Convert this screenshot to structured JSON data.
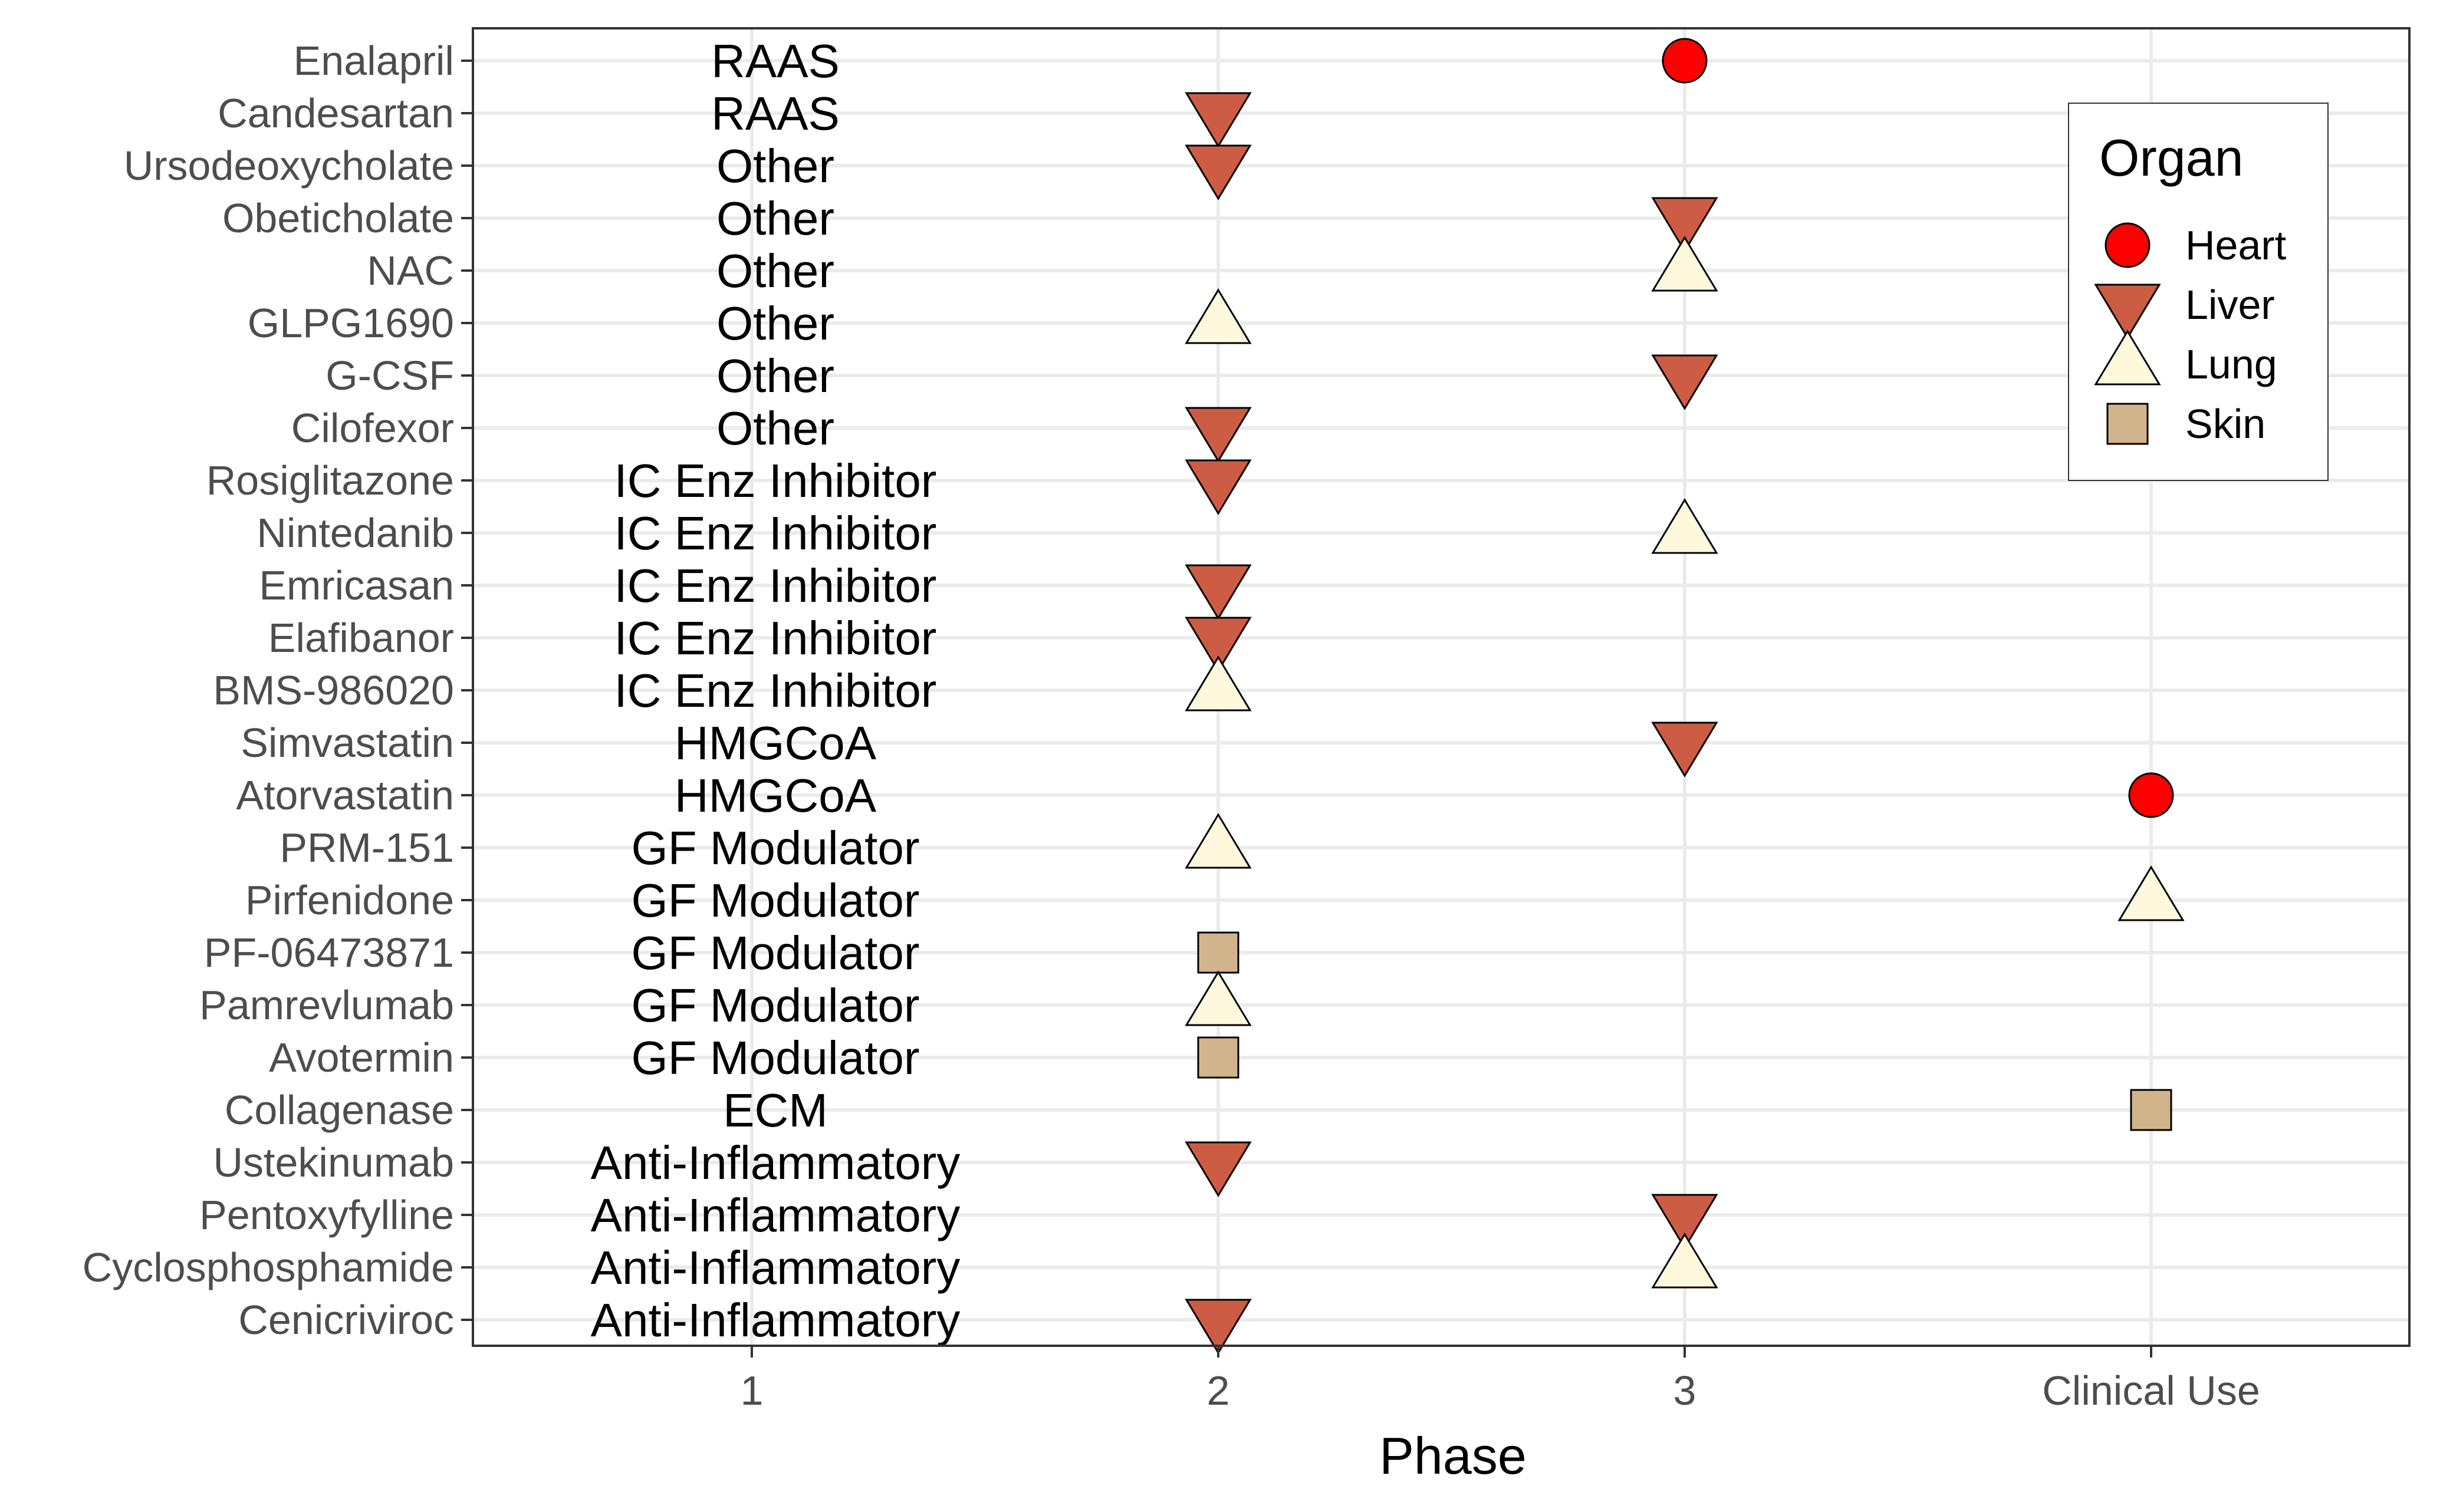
{
  "chart_data": {
    "type": "scatter",
    "title": "",
    "xlabel": "Phase",
    "ylabel": "",
    "x_categories": [
      "1",
      "2",
      "3",
      "Clinical Use"
    ],
    "y_categories": [
      "Enalapril",
      "Candesartan",
      "Ursodeoxycholate",
      "Obeticholate",
      "NAC",
      "GLPG1690",
      "G-CSF",
      "Cilofexor",
      "Rosiglitazone",
      "Nintedanib",
      "Emricasan",
      "Elafibanor",
      "BMS-986020",
      "Simvastatin",
      "Atorvastatin",
      "PRM-151",
      "Pirfenidone",
      "PF-06473871",
      "Pamrevlumab",
      "Avotermin",
      "Collagenase",
      "Ustekinumab",
      "Pentoxyfylline",
      "Cyclosphosphamide",
      "Cenicriviroc"
    ],
    "class_labels": [
      "RAAS",
      "RAAS",
      "Other",
      "Other",
      "Other",
      "Other",
      "Other",
      "Other",
      "IC Enz Inhibitor",
      "IC Enz Inhibitor",
      "IC Enz Inhibitor",
      "IC Enz Inhibitor",
      "IC Enz Inhibitor",
      "HMGCoA",
      "HMGCoA",
      "GF Modulator",
      "GF Modulator",
      "GF Modulator",
      "GF Modulator",
      "GF Modulator",
      "ECM",
      "Anti-Inflammatory",
      "Anti-Inflammatory",
      "Anti-Inflammatory",
      "Anti-Inflammatory"
    ],
    "legend": {
      "title": "Organ",
      "position": "top-right",
      "items": [
        {
          "name": "Heart",
          "shape": "circle",
          "color": "#ff0000"
        },
        {
          "name": "Liver",
          "shape": "triangle-down",
          "color": "#cd5c45"
        },
        {
          "name": "Lung",
          "shape": "triangle-up",
          "color": "#fff8dc"
        },
        {
          "name": "Skin",
          "shape": "square",
          "color": "#d2b48c"
        }
      ]
    },
    "points": [
      {
        "drug": "Enalapril",
        "phase": "3",
        "organ": "Heart"
      },
      {
        "drug": "Candesartan",
        "phase": "2",
        "organ": "Liver"
      },
      {
        "drug": "Ursodeoxycholate",
        "phase": "2",
        "organ": "Liver"
      },
      {
        "drug": "Obeticholate",
        "phase": "3",
        "organ": "Liver"
      },
      {
        "drug": "NAC",
        "phase": "3",
        "organ": "Lung"
      },
      {
        "drug": "GLPG1690",
        "phase": "2",
        "organ": "Lung"
      },
      {
        "drug": "G-CSF",
        "phase": "3",
        "organ": "Liver"
      },
      {
        "drug": "Cilofexor",
        "phase": "2",
        "organ": "Liver"
      },
      {
        "drug": "Rosiglitazone",
        "phase": "2",
        "organ": "Liver"
      },
      {
        "drug": "Nintedanib",
        "phase": "3",
        "organ": "Lung"
      },
      {
        "drug": "Emricasan",
        "phase": "2",
        "organ": "Liver"
      },
      {
        "drug": "Elafibanor",
        "phase": "2",
        "organ": "Liver"
      },
      {
        "drug": "BMS-986020",
        "phase": "2",
        "organ": "Lung"
      },
      {
        "drug": "Simvastatin",
        "phase": "3",
        "organ": "Liver"
      },
      {
        "drug": "Atorvastatin",
        "phase": "Clinical Use",
        "organ": "Heart"
      },
      {
        "drug": "PRM-151",
        "phase": "2",
        "organ": "Lung"
      },
      {
        "drug": "Pirfenidone",
        "phase": "Clinical Use",
        "organ": "Lung"
      },
      {
        "drug": "PF-06473871",
        "phase": "2",
        "organ": "Skin"
      },
      {
        "drug": "Pamrevlumab",
        "phase": "2",
        "organ": "Lung"
      },
      {
        "drug": "Avotermin",
        "phase": "2",
        "organ": "Skin"
      },
      {
        "drug": "Collagenase",
        "phase": "Clinical Use",
        "organ": "Skin"
      },
      {
        "drug": "Ustekinumab",
        "phase": "2",
        "organ": "Liver"
      },
      {
        "drug": "Pentoxyfylline",
        "phase": "3",
        "organ": "Liver"
      },
      {
        "drug": "Cyclosphosphamide",
        "phase": "3",
        "organ": "Lung"
      },
      {
        "drug": "Cenicriviroc",
        "phase": "2",
        "organ": "Liver"
      }
    ],
    "grid": true,
    "style": {
      "grid_color": "#ebebeb",
      "axis_text_color": "#4d4d4d",
      "tick_color": "#333333",
      "panel_border_color": "#333333",
      "marker_stroke": "#000000"
    }
  }
}
